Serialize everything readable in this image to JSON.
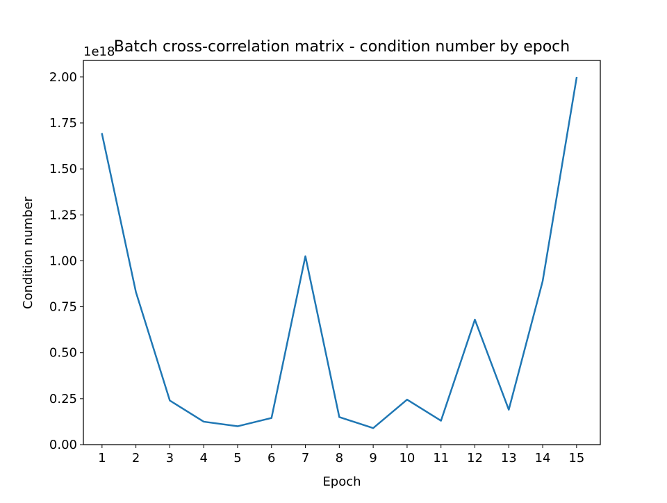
{
  "chart_data": {
    "type": "line",
    "title": "Batch cross-correlation matrix - condition number by epoch",
    "xlabel": "Epoch",
    "ylabel": "Condition number",
    "y_offset_label": "1e18",
    "y_scale_factor": 1e+18,
    "xlim": [
      0.45,
      15.7
    ],
    "ylim": [
      0,
      2.09
    ],
    "x_ticks": [
      1,
      2,
      3,
      4,
      5,
      6,
      7,
      8,
      9,
      10,
      11,
      12,
      13,
      14,
      15
    ],
    "y_ticks": [
      0.0,
      0.25,
      0.5,
      0.75,
      1.0,
      1.25,
      1.5,
      1.75,
      2.0
    ],
    "y_tick_labels": [
      "0.00",
      "0.25",
      "0.50",
      "0.75",
      "1.00",
      "1.25",
      "1.50",
      "1.75",
      "2.00"
    ],
    "grid": false,
    "legend": "none",
    "series": [
      {
        "color": "#1f77b4",
        "x": [
          1,
          2,
          3,
          4,
          5,
          6,
          7,
          8,
          9,
          10,
          11,
          12,
          13,
          14,
          15
        ],
        "values": [
          1.69,
          0.83,
          0.24,
          0.125,
          0.1,
          0.145,
          1.025,
          0.15,
          0.09,
          0.245,
          0.13,
          0.68,
          0.19,
          0.89,
          1.995
        ]
      }
    ]
  }
}
